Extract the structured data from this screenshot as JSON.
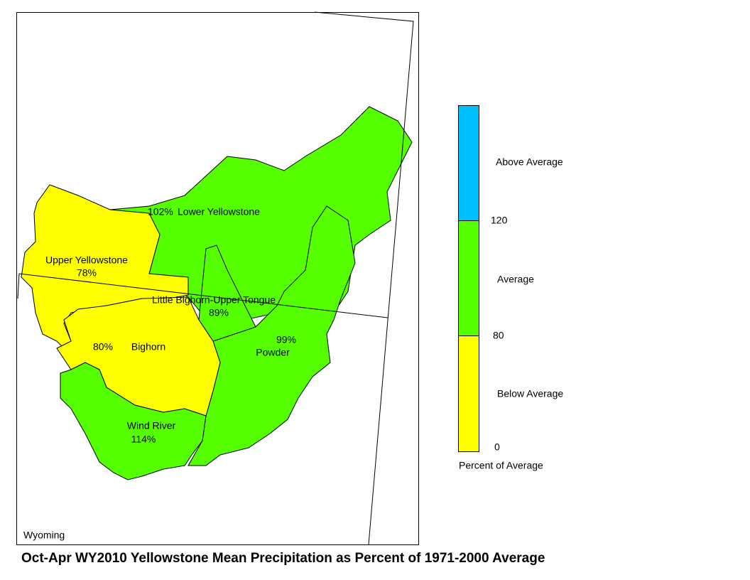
{
  "title": "Oct-Apr WY2010 Yellowstone Mean Precipitation as Percent of 1971-2000 Average",
  "map": {
    "state_label": "Wyoming",
    "basins": [
      {
        "name": "Lower Yellowstone",
        "percent": "102%"
      },
      {
        "name": "Upper Yellowstone",
        "percent": "78%"
      },
      {
        "name": "Little Bighorn-Upper Tongue",
        "percent": "89%"
      },
      {
        "name": "Bighorn",
        "percent": "80%"
      },
      {
        "name": "Powder",
        "percent": "99%"
      },
      {
        "name": "Wind River",
        "percent": "114%"
      }
    ]
  },
  "legend": {
    "title": "Percent of Average",
    "classes": [
      {
        "label": "Above Average",
        "color": "#00bfff"
      },
      {
        "label": "Average",
        "color": "#55ff00"
      },
      {
        "label": "Below Average",
        "color": "#ffff00"
      }
    ],
    "breaks": [
      "120",
      "80",
      "0"
    ]
  }
}
